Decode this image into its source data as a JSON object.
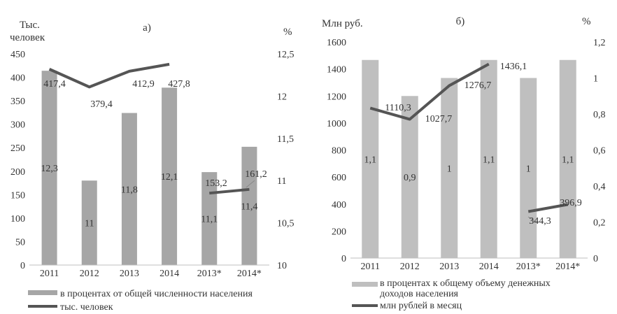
{
  "chart_data": [
    {
      "type": "bar+line",
      "panel_label": "а)",
      "left_axis_title_line1": "Тыс.",
      "left_axis_title_line2": "человек",
      "right_axis_title": "%",
      "categories": [
        "2011",
        "2012",
        "2013",
        "2014",
        "2013*",
        "2014*"
      ],
      "left_ylim": [
        0,
        450
      ],
      "left_ticks": [
        "0",
        "50",
        "100",
        "150",
        "200",
        "250",
        "300",
        "350",
        "400",
        "450"
      ],
      "right_ylim": [
        10,
        12.5
      ],
      "right_ticks": [
        "10",
        "10,5",
        "11",
        "11,5",
        "12",
        "12,5"
      ],
      "bar_series": {
        "name": "в процентах от общей численности населения",
        "axis": "right",
        "values": [
          12.3,
          11,
          11.8,
          12.1,
          11.1,
          11.4
        ],
        "labels": [
          "12,3",
          "11",
          "11,8",
          "12,1",
          "11,1",
          "11,4"
        ],
        "color": "#a6a6a6"
      },
      "line_series": {
        "name": "тыс. человек",
        "axis": "left",
        "segments": [
          [
            0,
            1,
            2,
            3
          ],
          [
            4,
            5
          ]
        ],
        "values": [
          417.4,
          379.4,
          412.9,
          427.8,
          153.2,
          161.2
        ],
        "labels": [
          "417,4",
          "379,4",
          "412,9",
          "427,8",
          "153,2",
          "161,2"
        ],
        "color": "#555555"
      },
      "grid": false,
      "legend_position": "bottom"
    },
    {
      "type": "bar+line",
      "panel_label": "б)",
      "left_axis_title_line1": "Млн руб.",
      "left_axis_title_line2": "",
      "right_axis_title": "%",
      "categories": [
        "2011",
        "2012",
        "2013",
        "2014",
        "2013*",
        "2014*"
      ],
      "left_ylim": [
        0,
        1600
      ],
      "left_ticks": [
        "0",
        "200",
        "400",
        "600",
        "800",
        "1000",
        "1200",
        "1400",
        "1600"
      ],
      "right_ylim": [
        0,
        1.2
      ],
      "right_ticks": [
        "0",
        "0,2",
        "0,4",
        "0,6",
        "0,8",
        "1",
        "1,2"
      ],
      "bar_series": {
        "name": "в процентах к общему объему денежных доходов населения",
        "axis": "right",
        "values": [
          1.1,
          0.9,
          1,
          1.1,
          1,
          1.1
        ],
        "labels": [
          "1,1",
          "0,9",
          "1",
          "1,1",
          "1",
          "1,1"
        ],
        "color": "#bfbfbf"
      },
      "line_series": {
        "name": "млн рублей в месяц",
        "axis": "left",
        "segments": [
          [
            0,
            1,
            2,
            3
          ],
          [
            4,
            5
          ]
        ],
        "values": [
          1110.3,
          1027.7,
          1276.7,
          1436.1,
          344.3,
          396.9
        ],
        "labels": [
          "1110,3",
          "1027,7",
          "1276,7",
          "1436,1",
          "344,3",
          "396,9"
        ],
        "color": "#555555"
      },
      "grid": false,
      "legend_position": "bottom"
    }
  ]
}
